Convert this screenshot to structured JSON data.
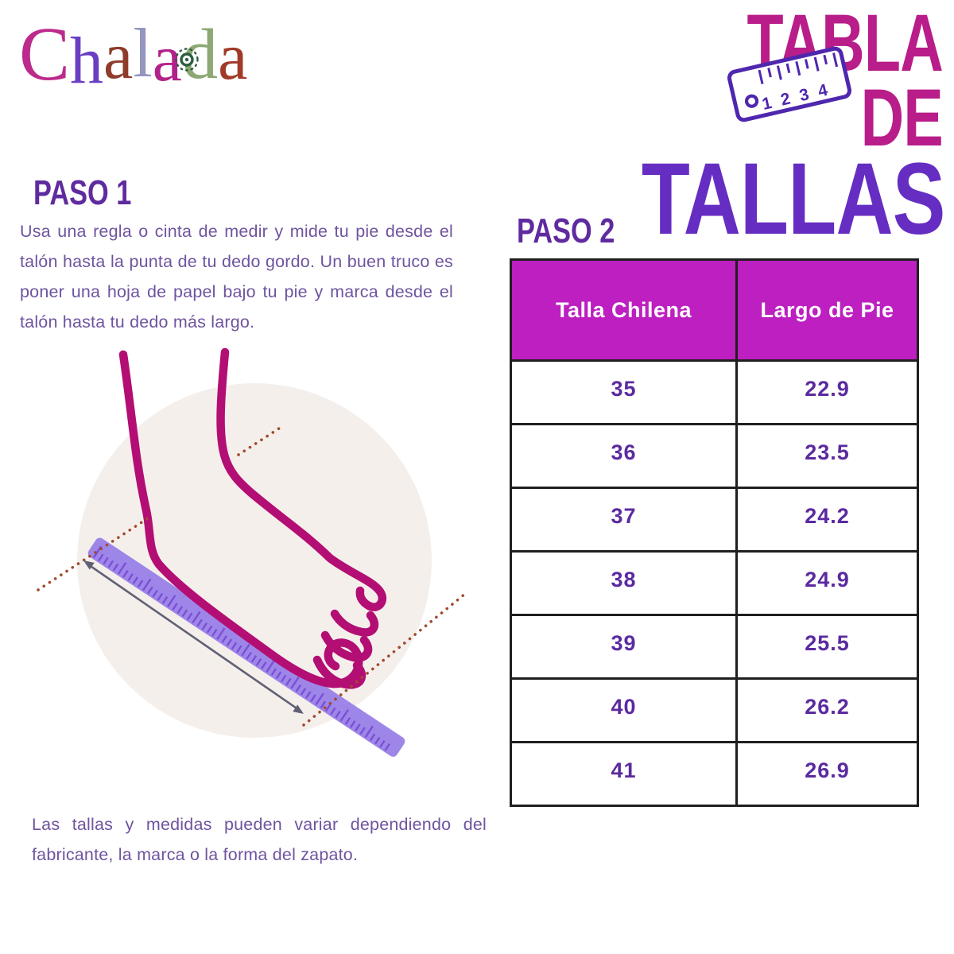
{
  "logo": {
    "name": "Chalada",
    "letters": [
      {
        "char": "C",
        "color": "#bc2a8c"
      },
      {
        "char": "h",
        "color": "#6a3ec2"
      },
      {
        "char": "a",
        "color": "#8f3c2a"
      },
      {
        "char": "l",
        "color": "#9496c0"
      },
      {
        "char": "a",
        "color": "#b3218b"
      },
      {
        "char": "d",
        "color": "#8ca874"
      },
      {
        "char": "a",
        "color": "#a13a28"
      }
    ]
  },
  "title": {
    "line1": "TABLA DE",
    "line2": "TALLAS",
    "ruler_icon_numbers": [
      "1",
      "2",
      "3",
      "4"
    ]
  },
  "step1": {
    "heading": "PASO 1",
    "body": "Usa una regla o cinta de medir y mide tu pie desde el talón hasta la punta de tu dedo gordo. Un buen truco es poner una hoja de papel bajo tu pie y marca desde el talón hasta tu dedo más largo."
  },
  "step2": {
    "heading": "PASO 2"
  },
  "size_table": {
    "columns": [
      "Talla Chilena",
      "Largo de Pie"
    ],
    "rows": [
      [
        "35",
        "22.9"
      ],
      [
        "36",
        "23.5"
      ],
      [
        "37",
        "24.2"
      ],
      [
        "38",
        "24.9"
      ],
      [
        "39",
        "25.5"
      ],
      [
        "40",
        "26.2"
      ],
      [
        "41",
        "26.9"
      ]
    ]
  },
  "footnote": "Las tallas y medidas pueden variar dependiendo del fabricante, la marca o la forma del zapato.",
  "colors": {
    "title_line1": "#b81d89",
    "title_line2": "#662dc2",
    "icon_purple": "#4f27ae",
    "heading": "#5f2b9f",
    "body_text": "#6f549f",
    "table_header_bg": "#bd1fc0",
    "table_value": "#5b2aa0",
    "foot_outline": "#b30e73",
    "ruler_fill": "#9d86e8",
    "ruler_ticks": "#7b4fd6",
    "dotted_line": "#a04b2e",
    "arrow": "#606074",
    "circle_bg": "#f5efec"
  }
}
